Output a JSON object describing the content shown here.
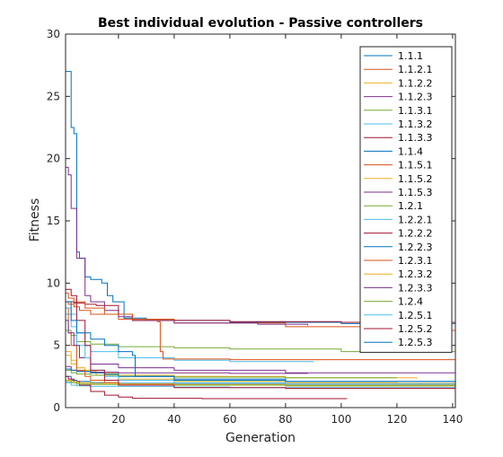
{
  "chart_data": {
    "type": "line",
    "title": "Best individual evolution - Passive controllers",
    "xlabel": "Generation",
    "ylabel": "Fitness",
    "xlim": [
      1,
      141
    ],
    "ylim": [
      0,
      30
    ],
    "xticks": [
      20,
      40,
      60,
      80,
      100,
      120,
      140
    ],
    "yticks": [
      0,
      5,
      10,
      15,
      20,
      25,
      30
    ],
    "grid": false,
    "legend_position": "top-right",
    "series": [
      {
        "name": "1.1.1",
        "color": "#0072BD",
        "x": [
          1,
          2,
          3,
          4,
          5,
          6,
          8,
          10,
          14,
          16,
          18,
          22,
          30,
          60,
          100,
          141
        ],
        "y": [
          27,
          27,
          22.5,
          22,
          12.5,
          12,
          10.5,
          10.3,
          10,
          9,
          8.5,
          7.2,
          7,
          6.85,
          6.75,
          6.6
        ]
      },
      {
        "name": "1.1.2.1",
        "color": "#D95319",
        "x": [
          1,
          2,
          4,
          6,
          10,
          20,
          40,
          80,
          120,
          141
        ],
        "y": [
          8.5,
          8.3,
          8.1,
          7.8,
          7.5,
          7.1,
          6.8,
          6.5,
          6.2,
          6
        ]
      },
      {
        "name": "1.1.2.2",
        "color": "#EDB120",
        "x": [
          1,
          3,
          5,
          8,
          12,
          20,
          40,
          80,
          120,
          141
        ],
        "y": [
          4.2,
          3.8,
          3.2,
          2.9,
          2.6,
          2.3,
          2.1,
          2,
          1.95,
          1.9
        ]
      },
      {
        "name": "1.1.2.3",
        "color": "#7E2F8E",
        "x": [
          1,
          2,
          3,
          5,
          8,
          10,
          15,
          20,
          25,
          40,
          70,
          88
        ],
        "y": [
          19.3,
          18.7,
          16,
          12,
          9,
          8.5,
          7.8,
          7.3,
          7,
          6.8,
          6.7,
          6.6
        ]
      },
      {
        "name": "1.1.3.1",
        "color": "#77AC30",
        "x": [
          1,
          3,
          5,
          10,
          20,
          40,
          60,
          100,
          141
        ],
        "y": [
          6.2,
          5.8,
          5.3,
          5.1,
          4.9,
          4.8,
          4.7,
          4.5,
          4.45
        ]
      },
      {
        "name": "1.1.3.2",
        "color": "#4DBEEE",
        "x": [
          1,
          3,
          5,
          10,
          20,
          40,
          60,
          90
        ],
        "y": [
          7.5,
          6.5,
          5,
          4.5,
          4,
          3.8,
          3.7,
          3.65
        ]
      },
      {
        "name": "1.1.3.3",
        "color": "#A2142F",
        "x": [
          1,
          4,
          6,
          8,
          12,
          20,
          25,
          60,
          100,
          141
        ],
        "y": [
          8.5,
          8.4,
          8.4,
          8.3,
          8.2,
          7.5,
          7,
          6.9,
          6.85,
          6.8
        ]
      },
      {
        "name": "1.1.4",
        "color": "#0072BD",
        "x": [
          1,
          3,
          5,
          10,
          20,
          40,
          80,
          120,
          141
        ],
        "y": [
          2.5,
          2.2,
          2.1,
          2,
          1.95,
          1.9,
          1.9,
          1.9,
          1.9
        ]
      },
      {
        "name": "1.1.5.1",
        "color": "#D95319",
        "x": [
          1,
          2,
          4,
          8,
          15,
          25,
          34,
          35,
          36,
          60,
          100,
          141
        ],
        "y": [
          9.2,
          8.8,
          8.5,
          8,
          7.5,
          7.1,
          6.9,
          4.5,
          3.9,
          3.85,
          3.85,
          3.85
        ]
      },
      {
        "name": "1.1.5.2",
        "color": "#EDB120",
        "x": [
          1,
          3,
          5,
          10,
          20,
          40,
          80,
          127
        ],
        "y": [
          4.5,
          3.5,
          3,
          2.8,
          2.6,
          2.5,
          2.4,
          2.3
        ]
      },
      {
        "name": "1.1.5.3",
        "color": "#7E2F8E",
        "x": [
          1,
          3,
          5,
          10,
          20,
          40,
          60,
          88
        ],
        "y": [
          3.3,
          3,
          2.9,
          2.85,
          2.8,
          2.8,
          2.75,
          2.75
        ]
      },
      {
        "name": "1.2.1",
        "color": "#77AC30",
        "x": [
          1,
          3,
          5,
          10,
          20,
          40,
          80,
          120
        ],
        "y": [
          3,
          2.8,
          2.7,
          2.6,
          2.5,
          2.45,
          2.4,
          2.4
        ]
      },
      {
        "name": "1.2.2.1",
        "color": "#4DBEEE",
        "x": [
          1,
          3,
          5,
          10,
          20,
          40,
          60,
          80,
          100,
          141
        ],
        "y": [
          2,
          1.8,
          1.75,
          1.7,
          1.7,
          1.65,
          1.6,
          1.6,
          1.6,
          1.6
        ]
      },
      {
        "name": "1.2.2.2",
        "color": "#A2142F",
        "x": [
          1,
          2,
          4,
          6,
          10,
          15,
          20,
          25,
          50,
          102
        ],
        "y": [
          2.5,
          2.3,
          2.1,
          1.8,
          1.3,
          1,
          0.85,
          0.75,
          0.72,
          0.7
        ]
      },
      {
        "name": "1.2.2.3",
        "color": "#0072BD",
        "x": [
          1,
          3,
          5,
          10,
          15,
          20,
          40,
          80,
          141
        ],
        "y": [
          3.1,
          3,
          2.9,
          2.8,
          2.7,
          2.5,
          2.3,
          2.1,
          2
        ]
      },
      {
        "name": "1.2.3.1",
        "color": "#D95319",
        "x": [
          1,
          2,
          3,
          5,
          8,
          10,
          15,
          20,
          40,
          80,
          141
        ],
        "y": [
          8,
          6,
          5,
          3,
          2.5,
          2.2,
          2,
          1.9,
          1.8,
          1.75,
          1.7
        ]
      },
      {
        "name": "1.2.3.2",
        "color": "#EDB120",
        "x": [
          1,
          3,
          5,
          10,
          20,
          40,
          80,
          120,
          141
        ],
        "y": [
          2.2,
          2.1,
          2,
          1.95,
          1.9,
          1.85,
          1.8,
          1.8,
          1.75
        ]
      },
      {
        "name": "1.2.3.3",
        "color": "#7E2F8E",
        "x": [
          1,
          2,
          4,
          6,
          10,
          20,
          40,
          80,
          141
        ],
        "y": [
          7,
          6,
          5,
          4,
          3.5,
          3.2,
          3,
          2.8,
          2.7
        ]
      },
      {
        "name": "1.2.4",
        "color": "#77AC30",
        "x": [
          1,
          3,
          5,
          10,
          20,
          40,
          80,
          141
        ],
        "y": [
          2.1,
          2,
          1.9,
          1.85,
          1.8,
          1.8,
          1.75,
          1.75
        ]
      },
      {
        "name": "1.2.5.1",
        "color": "#4DBEEE",
        "x": [
          1,
          3,
          5,
          8,
          10,
          15,
          20,
          40,
          80,
          141
        ],
        "y": [
          8,
          7.5,
          6,
          4,
          3,
          2.5,
          2.2,
          2,
          1.9,
          1.85
        ]
      },
      {
        "name": "1.2.5.2",
        "color": "#A2142F",
        "x": [
          1,
          3,
          5,
          8,
          10,
          15,
          20,
          40,
          80,
          141
        ],
        "y": [
          9.5,
          9,
          7,
          5,
          3,
          2.2,
          1.8,
          1.6,
          1.55,
          1.5
        ]
      },
      {
        "name": "1.2.5.3",
        "color": "#0072BD",
        "x": [
          1,
          3,
          5,
          10,
          15,
          20,
          25,
          26,
          40,
          80,
          141
        ],
        "y": [
          8.5,
          7,
          6,
          5.5,
          5,
          4.5,
          4.2,
          2.5,
          2.2,
          2.1,
          2
        ]
      }
    ]
  }
}
